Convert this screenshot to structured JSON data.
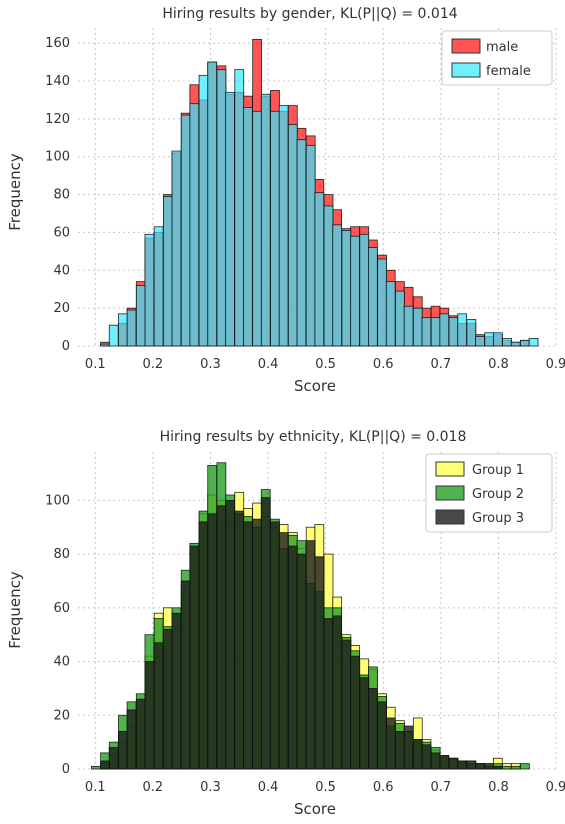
{
  "chart_data": [
    {
      "type": "bar",
      "title": "Hiring results by gender, KL(P||Q) = 0.014",
      "xlabel": "Score",
      "ylabel": "Frequency",
      "xlim": [
        0.07,
        0.9
      ],
      "ylim": [
        0,
        168
      ],
      "xticks": [
        "0.1",
        "0.2",
        "0.3",
        "0.4",
        "0.5",
        "0.6",
        "0.7",
        "0.8",
        "0.9"
      ],
      "yticks": [
        "0",
        "20",
        "40",
        "60",
        "80",
        "100",
        "120",
        "140",
        "160"
      ],
      "grid": true,
      "legend": "top-right",
      "bin_width": 0.0155,
      "series": [
        {
          "name": "male",
          "color": "#ff2a2a",
          "points": [
            [
              0.117,
              2
            ],
            [
              0.148,
              12
            ],
            [
              0.163,
              20
            ],
            [
              0.179,
              34
            ],
            [
              0.194,
              57
            ],
            [
              0.21,
              60
            ],
            [
              0.226,
              80
            ],
            [
              0.241,
              102
            ],
            [
              0.257,
              123
            ],
            [
              0.272,
              138
            ],
            [
              0.288,
              130
            ],
            [
              0.303,
              150
            ],
            [
              0.319,
              148
            ],
            [
              0.334,
              133
            ],
            [
              0.35,
              134
            ],
            [
              0.365,
              132
            ],
            [
              0.381,
              162
            ],
            [
              0.396,
              132
            ],
            [
              0.412,
              135
            ],
            [
              0.427,
              124
            ],
            [
              0.443,
              127
            ],
            [
              0.458,
              115
            ],
            [
              0.474,
              111
            ],
            [
              0.489,
              88
            ],
            [
              0.505,
              80
            ],
            [
              0.52,
              72
            ],
            [
              0.536,
              62
            ],
            [
              0.551,
              63
            ],
            [
              0.567,
              63
            ],
            [
              0.582,
              56
            ],
            [
              0.598,
              48
            ],
            [
              0.613,
              40
            ],
            [
              0.629,
              34
            ],
            [
              0.644,
              31
            ],
            [
              0.66,
              26
            ],
            [
              0.675,
              20
            ],
            [
              0.691,
              21
            ],
            [
              0.706,
              20
            ],
            [
              0.722,
              16
            ],
            [
              0.737,
              12
            ],
            [
              0.753,
              12
            ],
            [
              0.768,
              6
            ],
            [
              0.784,
              5
            ],
            [
              0.799,
              6
            ],
            [
              0.815,
              3
            ],
            [
              0.83,
              2
            ],
            [
              0.846,
              3
            ]
          ]
        },
        {
          "name": "female",
          "color": "#33e8ff",
          "points": [
            [
              0.117,
              1
            ],
            [
              0.132,
              11
            ],
            [
              0.148,
              17
            ],
            [
              0.163,
              19
            ],
            [
              0.179,
              32
            ],
            [
              0.194,
              59
            ],
            [
              0.21,
              63
            ],
            [
              0.226,
              79
            ],
            [
              0.241,
              103
            ],
            [
              0.257,
              122
            ],
            [
              0.272,
              128
            ],
            [
              0.288,
              143
            ],
            [
              0.303,
              150
            ],
            [
              0.319,
              146
            ],
            [
              0.334,
              134
            ],
            [
              0.35,
              146
            ],
            [
              0.365,
              126
            ],
            [
              0.381,
              124
            ],
            [
              0.396,
              133
            ],
            [
              0.412,
              124
            ],
            [
              0.427,
              127
            ],
            [
              0.443,
              117
            ],
            [
              0.458,
              109
            ],
            [
              0.474,
              106
            ],
            [
              0.489,
              81
            ],
            [
              0.505,
              74
            ],
            [
              0.52,
              64
            ],
            [
              0.536,
              61
            ],
            [
              0.551,
              58
            ],
            [
              0.567,
              59
            ],
            [
              0.582,
              52
            ],
            [
              0.598,
              46
            ],
            [
              0.613,
              34
            ],
            [
              0.629,
              29
            ],
            [
              0.644,
              21
            ],
            [
              0.66,
              20
            ],
            [
              0.675,
              15
            ],
            [
              0.691,
              15
            ],
            [
              0.706,
              17
            ],
            [
              0.722,
              15
            ],
            [
              0.737,
              17
            ],
            [
              0.753,
              14
            ],
            [
              0.768,
              5
            ],
            [
              0.784,
              7
            ],
            [
              0.799,
              7
            ],
            [
              0.815,
              4
            ],
            [
              0.83,
              2
            ],
            [
              0.846,
              3
            ],
            [
              0.861,
              4
            ]
          ]
        }
      ]
    },
    {
      "type": "bar",
      "title": "Hiring results by ethnicity, KL(P||Q) = 0.018",
      "xlabel": "Score",
      "ylabel": "Frequency",
      "xlim": [
        0.07,
        0.9
      ],
      "ylim": [
        0,
        118
      ],
      "xticks": [
        "0.1",
        "0.2",
        "0.3",
        "0.4",
        "0.5",
        "0.6",
        "0.7",
        "0.8",
        "0.9"
      ],
      "yticks": [
        "0",
        "20",
        "40",
        "60",
        "80",
        "100"
      ],
      "grid": true,
      "legend": "top-right",
      "bin_width": 0.0155,
      "series": [
        {
          "name": "Group 1",
          "color": "#ffff3b",
          "points": [
            [
              0.117,
              2
            ],
            [
              0.132,
              5
            ],
            [
              0.148,
              10
            ],
            [
              0.163,
              16
            ],
            [
              0.179,
              23
            ],
            [
              0.194,
              42
            ],
            [
              0.21,
              58
            ],
            [
              0.226,
              60
            ],
            [
              0.241,
              53
            ],
            [
              0.257,
              68
            ],
            [
              0.272,
              82
            ],
            [
              0.288,
              95
            ],
            [
              0.303,
              102
            ],
            [
              0.319,
              100
            ],
            [
              0.334,
              92
            ],
            [
              0.35,
              103
            ],
            [
              0.365,
              97
            ],
            [
              0.381,
              99
            ],
            [
              0.396,
              94
            ],
            [
              0.412,
              90
            ],
            [
              0.427,
              91
            ],
            [
              0.443,
              88
            ],
            [
              0.458,
              82
            ],
            [
              0.474,
              90
            ],
            [
              0.489,
              91
            ],
            [
              0.505,
              80
            ],
            [
              0.52,
              64
            ],
            [
              0.536,
              50
            ],
            [
              0.551,
              46
            ],
            [
              0.567,
              41
            ],
            [
              0.582,
              37
            ],
            [
              0.598,
              28
            ],
            [
              0.613,
              23
            ],
            [
              0.629,
              18
            ],
            [
              0.644,
              14
            ],
            [
              0.66,
              19
            ],
            [
              0.675,
              11
            ],
            [
              0.691,
              7
            ],
            [
              0.706,
              5
            ],
            [
              0.722,
              4
            ],
            [
              0.737,
              3
            ],
            [
              0.753,
              3
            ],
            [
              0.768,
              2
            ],
            [
              0.784,
              2
            ],
            [
              0.799,
              4
            ],
            [
              0.815,
              2
            ],
            [
              0.83,
              2
            ]
          ]
        },
        {
          "name": "Group 2",
          "color": "#24a024",
          "points": [
            [
              0.101,
              1
            ],
            [
              0.117,
              6
            ],
            [
              0.132,
              10
            ],
            [
              0.148,
              20
            ],
            [
              0.163,
              25
            ],
            [
              0.179,
              28
            ],
            [
              0.194,
              50
            ],
            [
              0.21,
              56
            ],
            [
              0.226,
              53
            ],
            [
              0.241,
              60
            ],
            [
              0.257,
              74
            ],
            [
              0.272,
              84
            ],
            [
              0.288,
              96
            ],
            [
              0.303,
              113
            ],
            [
              0.319,
              114
            ],
            [
              0.334,
              102
            ],
            [
              0.35,
              95
            ],
            [
              0.365,
              94
            ],
            [
              0.381,
              90
            ],
            [
              0.396,
              104
            ],
            [
              0.412,
              93
            ],
            [
              0.427,
              82
            ],
            [
              0.443,
              87
            ],
            [
              0.458,
              85
            ],
            [
              0.474,
              69
            ],
            [
              0.489,
              66
            ],
            [
              0.505,
              60
            ],
            [
              0.52,
              60
            ],
            [
              0.536,
              49
            ],
            [
              0.551,
              44
            ],
            [
              0.567,
              35
            ],
            [
              0.582,
              38
            ],
            [
              0.598,
              27
            ],
            [
              0.613,
              16
            ],
            [
              0.629,
              17
            ],
            [
              0.644,
              14
            ],
            [
              0.66,
              11
            ],
            [
              0.675,
              10
            ],
            [
              0.691,
              8
            ],
            [
              0.706,
              5
            ],
            [
              0.722,
              4
            ],
            [
              0.737,
              3
            ],
            [
              0.753,
              2
            ],
            [
              0.768,
              2
            ],
            [
              0.784,
              1
            ],
            [
              0.799,
              2
            ],
            [
              0.815,
              1
            ],
            [
              0.83,
              1
            ],
            [
              0.846,
              2
            ]
          ]
        },
        {
          "name": "Group 3",
          "color": "#1c1c1c",
          "points": [
            [
              0.117,
              3
            ],
            [
              0.132,
              8
            ],
            [
              0.148,
              14
            ],
            [
              0.163,
              22
            ],
            [
              0.179,
              26
            ],
            [
              0.194,
              40
            ],
            [
              0.21,
              47
            ],
            [
              0.226,
              52
            ],
            [
              0.241,
              58
            ],
            [
              0.257,
              70
            ],
            [
              0.272,
              83
            ],
            [
              0.288,
              92
            ],
            [
              0.303,
              95
            ],
            [
              0.319,
              98
            ],
            [
              0.334,
              100
            ],
            [
              0.35,
              96
            ],
            [
              0.365,
              92
            ],
            [
              0.381,
              93
            ],
            [
              0.396,
              101
            ],
            [
              0.412,
              92
            ],
            [
              0.427,
              88
            ],
            [
              0.443,
              83
            ],
            [
              0.458,
              80
            ],
            [
              0.474,
              85
            ],
            [
              0.489,
              79
            ],
            [
              0.505,
              56
            ],
            [
              0.52,
              57
            ],
            [
              0.536,
              48
            ],
            [
              0.551,
              42
            ],
            [
              0.567,
              34
            ],
            [
              0.582,
              30
            ],
            [
              0.598,
              25
            ],
            [
              0.613,
              19
            ],
            [
              0.629,
              14
            ],
            [
              0.644,
              16
            ],
            [
              0.66,
              11
            ],
            [
              0.675,
              9
            ],
            [
              0.691,
              6
            ],
            [
              0.706,
              5
            ],
            [
              0.722,
              4
            ],
            [
              0.737,
              3
            ],
            [
              0.753,
              3
            ],
            [
              0.768,
              2
            ],
            [
              0.784,
              2
            ],
            [
              0.799,
              1
            ]
          ]
        }
      ]
    }
  ]
}
